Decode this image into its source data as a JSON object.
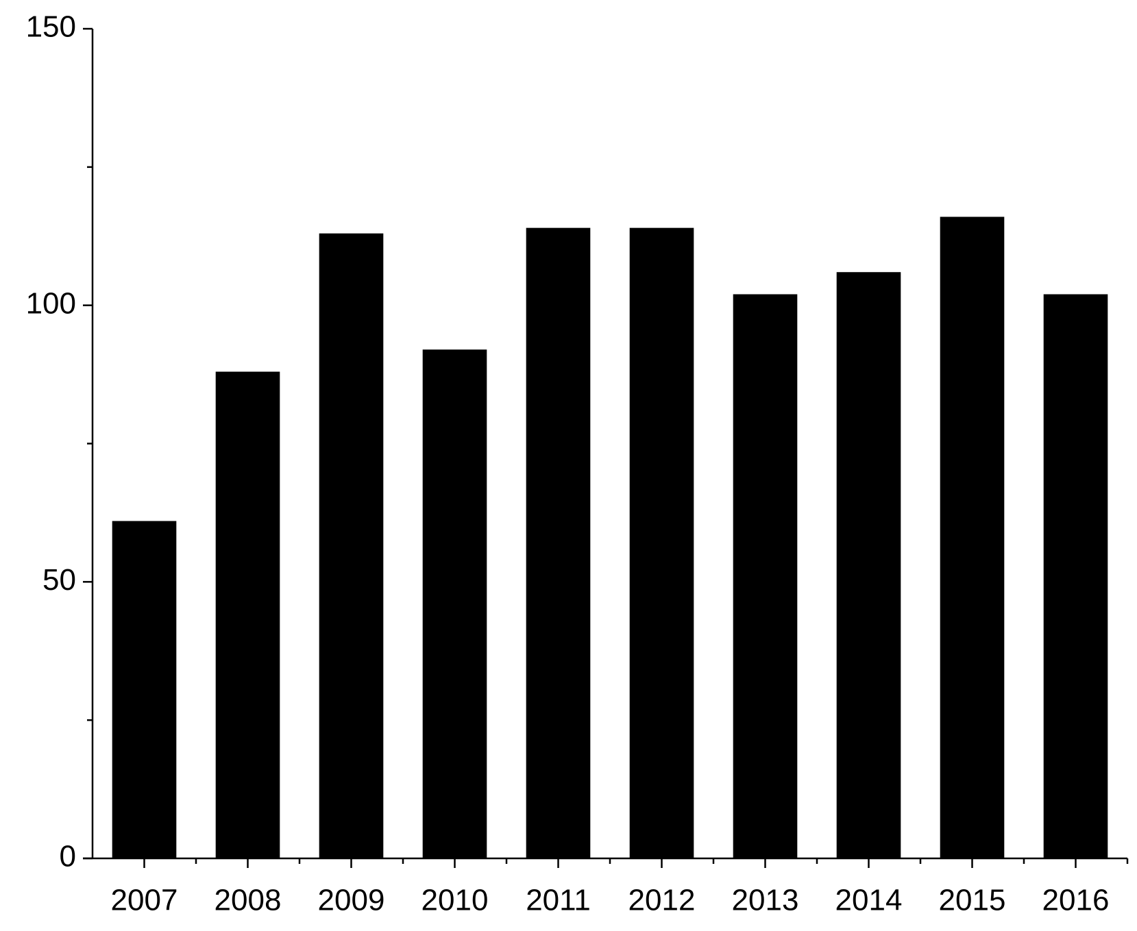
{
  "chart_data": {
    "type": "bar",
    "categories": [
      "2007",
      "2008",
      "2009",
      "2010",
      "2011",
      "2012",
      "2013",
      "2014",
      "2015",
      "2016"
    ],
    "values": [
      61,
      88,
      113,
      92,
      114,
      114,
      102,
      106,
      116,
      102
    ],
    "color": "#000000",
    "ylim": [
      0,
      150
    ],
    "yticks": [
      0,
      50,
      100,
      150
    ],
    "yminorticks": [
      25,
      75,
      125
    ],
    "grid": false
  }
}
